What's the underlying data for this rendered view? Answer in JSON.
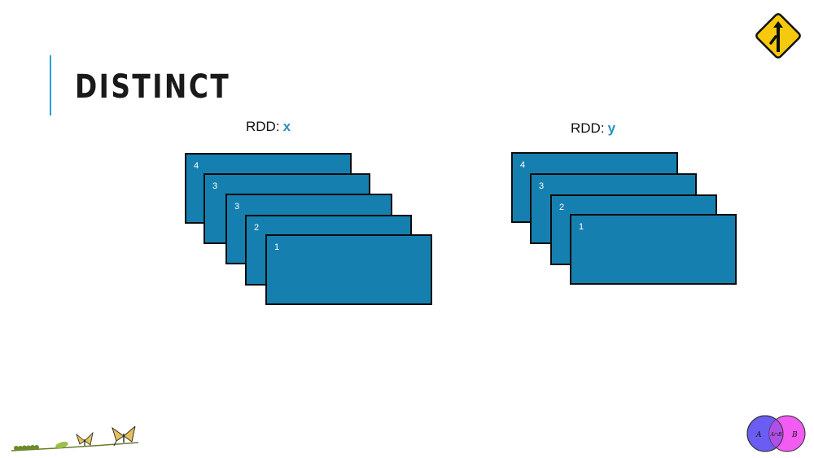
{
  "slide": {
    "title": "DISTINCT"
  },
  "rdd_x": {
    "label_prefix": "RDD:",
    "label_var": "x",
    "partitions": [
      "4",
      "3",
      "3",
      "2",
      "1"
    ]
  },
  "rdd_y": {
    "label_prefix": "RDD:",
    "label_var": "y",
    "partitions": [
      "4",
      "3",
      "2",
      "1"
    ]
  },
  "venn": {
    "left": "A",
    "right": "B",
    "intersection": "A∩B"
  },
  "colors": {
    "accent": "#2a9fd6",
    "partition_fill": "#1580b0",
    "variable_text": "#2a8fc0",
    "sign_yellow": "#f6c90e",
    "venn_left": "#6b5cf2",
    "venn_right": "#f25cf2"
  },
  "icons": {
    "top_right": "merge-sign-icon",
    "bottom_left": "caterpillar-butterfly-metamorphosis-icon",
    "bottom_right": "venn-diagram-icon"
  }
}
